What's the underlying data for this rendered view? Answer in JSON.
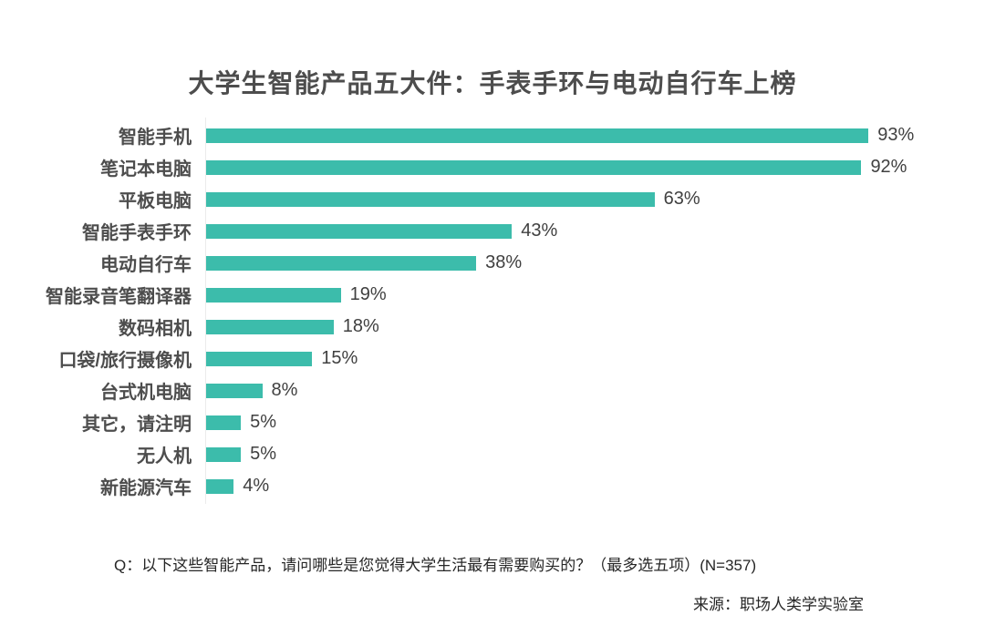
{
  "page": {
    "background": "#ffffff"
  },
  "chart_data": {
    "type": "bar",
    "orientation": "horizontal",
    "title": "大学生智能产品五大件：手表手环与电动自行车上榜",
    "categories": [
      "智能手机",
      "笔记本电脑",
      "平板电脑",
      "智能手表手环",
      "电动自行车",
      "智能录音笔翻译器",
      "数码相机",
      "口袋/旅行摄像机",
      "台式机电脑",
      "其它，请注明",
      "无人机",
      "新能源汽车"
    ],
    "values": [
      93,
      92,
      63,
      43,
      38,
      19,
      18,
      15,
      8,
      5,
      5,
      4
    ],
    "value_suffix": "%",
    "xlabel": "",
    "ylabel": "",
    "xlim": [
      0,
      100
    ],
    "grid": false,
    "legend": false,
    "value_labels": "end-of-bar",
    "bar_color": "#3cbcab",
    "label_color": "#4d4d4d",
    "title_color": "#4d4d4d"
  },
  "footer": {
    "question": "Q：以下这些智能产品，请问哪些是您觉得大学生活最有需要购买的？（最多选五项）(N=357)",
    "source": "来源：职场人类学实验室"
  }
}
